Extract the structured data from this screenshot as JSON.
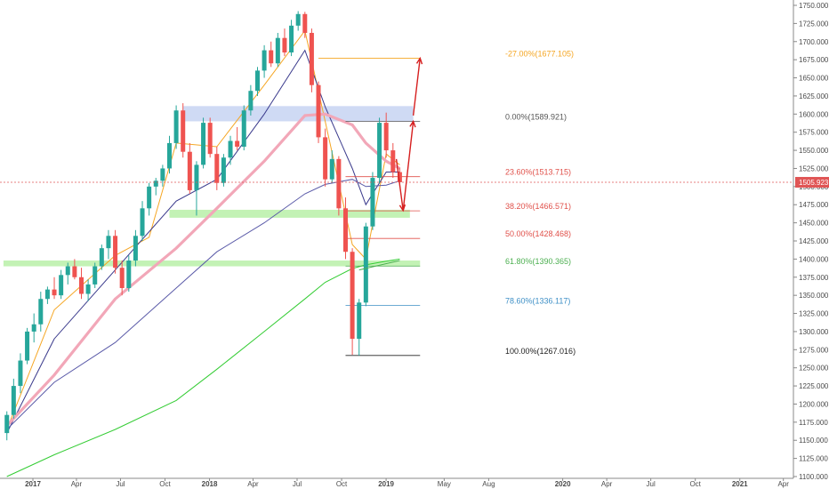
{
  "chart_data": {
    "type": "candlestick",
    "title": "",
    "xlabel": "",
    "ylabel": "",
    "ylim": [
      1100,
      1750
    ],
    "grid": false,
    "x_tick_labels": [
      "2017",
      "Apr",
      "Jul",
      "Oct",
      "2018",
      "Apr",
      "Jul",
      "Oct",
      "2019",
      "May",
      "Aug",
      "2020",
      "Apr",
      "Jul",
      "Oct",
      "2021",
      "Apr"
    ],
    "y_ticks": [
      1100,
      1125,
      1150,
      1175,
      1200,
      1225,
      1250,
      1275,
      1300,
      1325,
      1350,
      1375,
      1400,
      1425,
      1450,
      1475,
      1500,
      1525,
      1550,
      1575,
      1600,
      1625,
      1650,
      1675,
      1700,
      1725,
      1750
    ],
    "y_tick_labels": [
      "1100.000",
      "1125.000",
      "1150.000",
      "1175.000",
      "1200.000",
      "1225.000",
      "1250.000",
      "1275.000",
      "1300.000",
      "1325.000",
      "1350.000",
      "1375.000",
      "1400.000",
      "1425.000",
      "1450.000",
      "1475.000",
      "1500.000",
      "1525.000",
      "1550.000",
      "1575.000",
      "1600.000",
      "1625.000",
      "1650.000",
      "1675.000",
      "1700.000",
      "1725.000",
      "1750.000"
    ],
    "last_price": 1505.923,
    "last_price_label": "1505.923",
    "candles": [
      {
        "t": "2017-01-06",
        "o": 1160,
        "h": 1190,
        "l": 1150,
        "c": 1185
      },
      {
        "t": "2017-01-20",
        "o": 1185,
        "h": 1235,
        "l": 1180,
        "c": 1225
      },
      {
        "t": "2017-02-03",
        "o": 1225,
        "h": 1270,
        "l": 1215,
        "c": 1260
      },
      {
        "t": "2017-02-17",
        "o": 1260,
        "h": 1305,
        "l": 1255,
        "c": 1300
      },
      {
        "t": "2017-03-03",
        "o": 1300,
        "h": 1325,
        "l": 1285,
        "c": 1310
      },
      {
        "t": "2017-03-17",
        "o": 1310,
        "h": 1355,
        "l": 1300,
        "c": 1345
      },
      {
        "t": "2017-03-31",
        "o": 1345,
        "h": 1362,
        "l": 1338,
        "c": 1358
      },
      {
        "t": "2017-04-14",
        "o": 1358,
        "h": 1375,
        "l": 1345,
        "c": 1350
      },
      {
        "t": "2017-04-28",
        "o": 1350,
        "h": 1385,
        "l": 1345,
        "c": 1378
      },
      {
        "t": "2017-05-12",
        "o": 1378,
        "h": 1395,
        "l": 1365,
        "c": 1390
      },
      {
        "t": "2017-05-26",
        "o": 1390,
        "h": 1400,
        "l": 1372,
        "c": 1375
      },
      {
        "t": "2017-06-09",
        "o": 1375,
        "h": 1388,
        "l": 1345,
        "c": 1352
      },
      {
        "t": "2017-06-23",
        "o": 1352,
        "h": 1372,
        "l": 1342,
        "c": 1365
      },
      {
        "t": "2017-07-07",
        "o": 1365,
        "h": 1395,
        "l": 1360,
        "c": 1390
      },
      {
        "t": "2017-07-21",
        "o": 1390,
        "h": 1420,
        "l": 1385,
        "c": 1415
      },
      {
        "t": "2017-08-04",
        "o": 1415,
        "h": 1440,
        "l": 1400,
        "c": 1432
      },
      {
        "t": "2017-08-18",
        "o": 1432,
        "h": 1440,
        "l": 1380,
        "c": 1388
      },
      {
        "t": "2017-09-01",
        "o": 1388,
        "h": 1398,
        "l": 1350,
        "c": 1360
      },
      {
        "t": "2017-09-15",
        "o": 1360,
        "h": 1405,
        "l": 1355,
        "c": 1398
      },
      {
        "t": "2017-09-29",
        "o": 1398,
        "h": 1440,
        "l": 1390,
        "c": 1432
      },
      {
        "t": "2017-10-13",
        "o": 1432,
        "h": 1480,
        "l": 1425,
        "c": 1470
      },
      {
        "t": "2017-10-27",
        "o": 1470,
        "h": 1505,
        "l": 1460,
        "c": 1500
      },
      {
        "t": "2017-11-10",
        "o": 1500,
        "h": 1512,
        "l": 1488,
        "c": 1508
      },
      {
        "t": "2017-11-24",
        "o": 1508,
        "h": 1530,
        "l": 1500,
        "c": 1525
      },
      {
        "t": "2017-12-08",
        "o": 1525,
        "h": 1570,
        "l": 1518,
        "c": 1560
      },
      {
        "t": "2017-12-22",
        "o": 1560,
        "h": 1612,
        "l": 1552,
        "c": 1605
      },
      {
        "t": "2018-01-05",
        "o": 1605,
        "h": 1615,
        "l": 1540,
        "c": 1548
      },
      {
        "t": "2018-01-19",
        "o": 1548,
        "h": 1560,
        "l": 1490,
        "c": 1495
      },
      {
        "t": "2018-02-02",
        "o": 1495,
        "h": 1535,
        "l": 1460,
        "c": 1530
      },
      {
        "t": "2018-02-16",
        "o": 1530,
        "h": 1595,
        "l": 1525,
        "c": 1588
      },
      {
        "t": "2018-03-02",
        "o": 1588,
        "h": 1595,
        "l": 1540,
        "c": 1545
      },
      {
        "t": "2018-03-16",
        "o": 1545,
        "h": 1555,
        "l": 1495,
        "c": 1505
      },
      {
        "t": "2018-03-30",
        "o": 1505,
        "h": 1545,
        "l": 1500,
        "c": 1540
      },
      {
        "t": "2018-04-13",
        "o": 1540,
        "h": 1570,
        "l": 1530,
        "c": 1563
      },
      {
        "t": "2018-04-27",
        "o": 1563,
        "h": 1582,
        "l": 1550,
        "c": 1555
      },
      {
        "t": "2018-05-11",
        "o": 1555,
        "h": 1612,
        "l": 1550,
        "c": 1605
      },
      {
        "t": "2018-05-25",
        "o": 1605,
        "h": 1640,
        "l": 1598,
        "c": 1632
      },
      {
        "t": "2018-06-08",
        "o": 1632,
        "h": 1665,
        "l": 1625,
        "c": 1660
      },
      {
        "t": "2018-06-22",
        "o": 1660,
        "h": 1695,
        "l": 1650,
        "c": 1688
      },
      {
        "t": "2018-07-06",
        "o": 1688,
        "h": 1700,
        "l": 1665,
        "c": 1670
      },
      {
        "t": "2018-07-20",
        "o": 1670,
        "h": 1712,
        "l": 1665,
        "c": 1705
      },
      {
        "t": "2018-08-03",
        "o": 1705,
        "h": 1718,
        "l": 1680,
        "c": 1685
      },
      {
        "t": "2018-08-17",
        "o": 1685,
        "h": 1730,
        "l": 1680,
        "c": 1722
      },
      {
        "t": "2018-08-31",
        "o": 1722,
        "h": 1742,
        "l": 1715,
        "c": 1738
      },
      {
        "t": "2018-09-14",
        "o": 1738,
        "h": 1741,
        "l": 1705,
        "c": 1712
      },
      {
        "t": "2018-09-28",
        "o": 1712,
        "h": 1718,
        "l": 1630,
        "c": 1640
      },
      {
        "t": "2018-10-12",
        "o": 1640,
        "h": 1645,
        "l": 1560,
        "c": 1568
      },
      {
        "t": "2018-10-26",
        "o": 1568,
        "h": 1580,
        "l": 1500,
        "c": 1510
      },
      {
        "t": "2018-11-09",
        "o": 1510,
        "h": 1550,
        "l": 1505,
        "c": 1538
      },
      {
        "t": "2018-11-23",
        "o": 1538,
        "h": 1542,
        "l": 1460,
        "c": 1470
      },
      {
        "t": "2018-12-07",
        "o": 1470,
        "h": 1485,
        "l": 1400,
        "c": 1410
      },
      {
        "t": "2018-12-21",
        "o": 1410,
        "h": 1415,
        "l": 1268,
        "c": 1290
      },
      {
        "t": "2019-01-04",
        "o": 1290,
        "h": 1345,
        "l": 1267,
        "c": 1340
      },
      {
        "t": "2019-01-18",
        "o": 1340,
        "h": 1450,
        "l": 1335,
        "c": 1445
      },
      {
        "t": "2019-02-01",
        "o": 1445,
        "h": 1520,
        "l": 1440,
        "c": 1512
      },
      {
        "t": "2019-02-15",
        "o": 1512,
        "h": 1595,
        "l": 1505,
        "c": 1588
      },
      {
        "t": "2019-03-01",
        "o": 1588,
        "h": 1602,
        "l": 1540,
        "c": 1550
      },
      {
        "t": "2019-03-15",
        "o": 1550,
        "h": 1560,
        "l": 1512,
        "c": 1520
      },
      {
        "t": "2019-03-29",
        "o": 1520,
        "h": 1526,
        "l": 1500,
        "c": 1506
      }
    ],
    "moving_averages": [
      {
        "color": "#f5a623",
        "points": [
          [
            "2017-01-06",
            1165
          ],
          [
            "2017-04-14",
            1330
          ],
          [
            "2017-08-18",
            1405
          ],
          [
            "2017-10-27",
            1430
          ],
          [
            "2017-12-22",
            1560
          ],
          [
            "2018-03-16",
            1555
          ],
          [
            "2018-06-22",
            1640
          ],
          [
            "2018-09-14",
            1715
          ],
          [
            "2018-10-26",
            1590
          ],
          [
            "2018-12-21",
            1420
          ],
          [
            "2019-01-18",
            1400
          ],
          [
            "2019-03-01",
            1545
          ],
          [
            "2019-03-29",
            1530
          ]
        ]
      },
      {
        "color": "#3a3a8c",
        "points": [
          [
            "2017-01-06",
            1160
          ],
          [
            "2017-04-14",
            1290
          ],
          [
            "2017-08-18",
            1385
          ],
          [
            "2017-12-22",
            1480
          ],
          [
            "2018-03-16",
            1510
          ],
          [
            "2018-06-22",
            1600
          ],
          [
            "2018-09-14",
            1688
          ],
          [
            "2018-10-26",
            1610
          ],
          [
            "2018-12-21",
            1525
          ],
          [
            "2019-01-18",
            1475
          ],
          [
            "2019-03-01",
            1520
          ],
          [
            "2019-03-29",
            1520
          ]
        ]
      },
      {
        "color": "#f2a7b8",
        "points": [
          [
            "2017-01-06",
            1170
          ],
          [
            "2017-04-14",
            1240
          ],
          [
            "2017-08-18",
            1345
          ],
          [
            "2017-12-22",
            1415
          ],
          [
            "2018-03-16",
            1470
          ],
          [
            "2018-06-22",
            1535
          ],
          [
            "2018-09-14",
            1598
          ],
          [
            "2018-10-26",
            1600
          ],
          [
            "2018-12-21",
            1585
          ],
          [
            "2019-01-18",
            1560
          ],
          [
            "2019-03-01",
            1535
          ],
          [
            "2019-03-29",
            1525
          ]
        ]
      },
      {
        "color": "#5a5aa8",
        "points": [
          [
            "2017-01-06",
            1165
          ],
          [
            "2017-04-14",
            1230
          ],
          [
            "2017-08-18",
            1285
          ],
          [
            "2017-12-22",
            1360
          ],
          [
            "2018-03-16",
            1410
          ],
          [
            "2018-06-22",
            1450
          ],
          [
            "2018-09-14",
            1490
          ],
          [
            "2018-10-26",
            1503
          ],
          [
            "2018-12-21",
            1510
          ],
          [
            "2019-01-18",
            1500
          ],
          [
            "2019-03-01",
            1502
          ],
          [
            "2019-03-29",
            1508
          ]
        ]
      },
      {
        "color": "#33cc33",
        "points": [
          [
            "2017-01-06",
            1100
          ],
          [
            "2017-04-14",
            1130
          ],
          [
            "2017-08-18",
            1165
          ],
          [
            "2017-12-22",
            1205
          ],
          [
            "2018-03-16",
            1248
          ],
          [
            "2018-06-22",
            1300
          ],
          [
            "2018-09-14",
            1345
          ],
          [
            "2018-10-26",
            1368
          ],
          [
            "2018-12-21",
            1387
          ],
          [
            "2019-01-18",
            1392
          ],
          [
            "2019-03-01",
            1397
          ],
          [
            "2019-03-29",
            1400
          ]
        ]
      }
    ],
    "zones": [
      {
        "name": "resistance",
        "from": "2018-01-05",
        "to": "2019-04-26",
        "low": 1590,
        "high": 1611,
        "color": "#c7d4f2"
      },
      {
        "name": "support-upper",
        "from": "2017-12-08",
        "to": "2019-04-19",
        "low": 1457,
        "high": 1468,
        "color": "#b9f0a8"
      },
      {
        "name": "support-lower",
        "from": "2016-12-30",
        "to": "2019-05-10",
        "low": 1390,
        "high": 1398,
        "color": "#b9f0a8"
      }
    ],
    "fib_levels": [
      {
        "label": "-27.00%(1677.105)",
        "value": 1677.105,
        "color": "#f5a623",
        "from": "2018-10-12",
        "to": "2019-05-10"
      },
      {
        "label": "0.00%(1589.921)",
        "value": 1589.921,
        "color": "#555555",
        "from": "2018-12-07",
        "to": "2019-05-10"
      },
      {
        "label": "23.60%(1513.715)",
        "value": 1513.715,
        "color": "#e0504a",
        "from": "2018-12-07",
        "to": "2019-05-10"
      },
      {
        "label": "38.20%(1466.571)",
        "value": 1466.571,
        "color": "#e0504a",
        "from": "2018-12-07",
        "to": "2019-05-10"
      },
      {
        "label": "50.00%(1428.468)",
        "value": 1428.468,
        "color": "#e0504a",
        "from": "2018-12-07",
        "to": "2019-05-10"
      },
      {
        "label": "61.80%(1390.365)",
        "value": 1390.365,
        "color": "#4caf50",
        "from": "2018-12-07",
        "to": "2019-05-10"
      },
      {
        "label": "78.60%(1336.117)",
        "value": 1336.117,
        "color": "#3d8fc6",
        "from": "2018-12-07",
        "to": "2019-05-10"
      },
      {
        "label": "100.00%(1267.016)",
        "value": 1267.016,
        "color": "#222222",
        "from": "2018-12-07",
        "to": "2019-05-10"
      }
    ],
    "projection_arrows": [
      {
        "from": [
          "2019-03-22",
          1538
        ],
        "to": [
          "2019-04-05",
          1467
        ]
      },
      {
        "from": [
          "2019-04-05",
          1467
        ],
        "to": [
          "2019-04-26",
          1590
        ]
      },
      {
        "from": [
          "2019-04-26",
          1598
        ],
        "to": [
          "2019-05-10",
          1677
        ]
      }
    ],
    "trend_line": {
      "from": [
        "2019-01-04",
        1385
      ],
      "to": [
        "2019-03-29",
        1398
      ],
      "color": "#4caf50"
    }
  }
}
